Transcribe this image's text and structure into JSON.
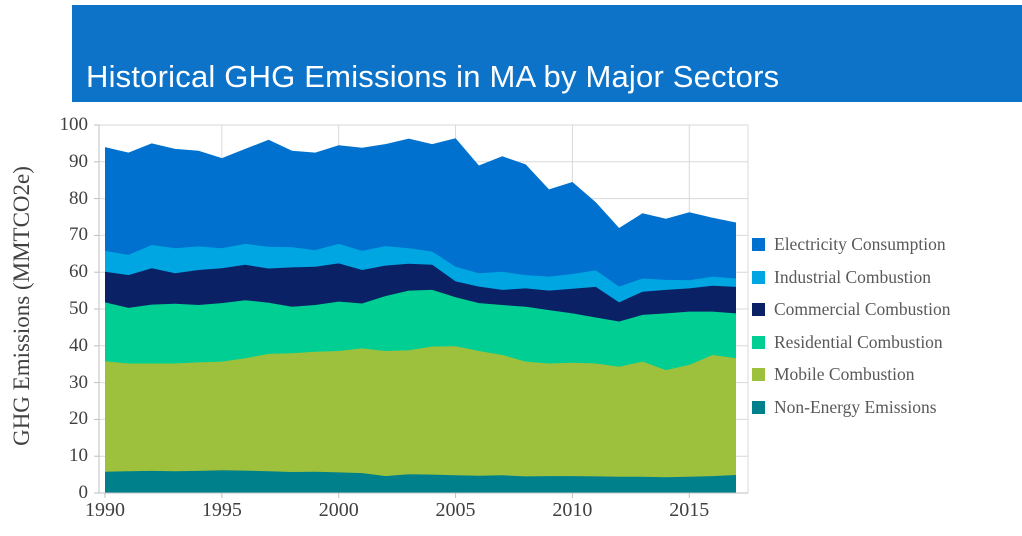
{
  "title": "Historical GHG Emissions in MA by Major Sectors",
  "y_axis_title": "GHG Emissions (MMTCO2e)",
  "colors": {
    "title_bar_background": "#0c73c8",
    "title_text": "#ffffff",
    "gridline": "#d9d9d9",
    "axis_line": "#bfbfbf",
    "tick_text": "#404040",
    "legend_text": "#595959"
  },
  "chart_data": {
    "type": "area",
    "stacked": true,
    "title": "Historical GHG Emissions in MA by Major Sectors",
    "xlabel": "",
    "ylabel": "GHG Emissions (MMTCO2e)",
    "ylim": [
      0,
      100
    ],
    "y_ticks": [
      0,
      10,
      20,
      30,
      40,
      50,
      60,
      70,
      80,
      90,
      100
    ],
    "x_ticks": [
      1990,
      1995,
      2000,
      2005,
      2010,
      2015
    ],
    "xlim": [
      1990,
      2017.5
    ],
    "grid": true,
    "legend_position": "right",
    "x": [
      1990,
      1991,
      1992,
      1993,
      1994,
      1995,
      1996,
      1997,
      1998,
      1999,
      2000,
      2001,
      2002,
      2003,
      2004,
      2005,
      2006,
      2007,
      2008,
      2009,
      2010,
      2011,
      2012,
      2013,
      2014,
      2015,
      2016,
      2017
    ],
    "series": [
      {
        "name": "Electricity Consumption",
        "color": "#0071ce",
        "values": [
          28.2,
          27.8,
          27.6,
          27.0,
          26.0,
          24.5,
          25.8,
          29.1,
          26.2,
          26.5,
          26.8,
          28.0,
          27.7,
          29.8,
          29.2,
          34.9,
          29.3,
          31.4,
          30.1,
          23.7,
          25.0,
          18.5,
          15.9,
          17.7,
          16.6,
          18.5,
          16.0,
          15.2
        ]
      },
      {
        "name": "Industrial Combustion",
        "color": "#00a6e2",
        "values": [
          5.7,
          5.5,
          6.3,
          6.8,
          6.4,
          5.4,
          5.7,
          5.9,
          5.5,
          4.5,
          5.3,
          5.2,
          5.3,
          4.2,
          3.6,
          4.0,
          3.6,
          4.9,
          3.6,
          3.8,
          4.0,
          4.5,
          4.3,
          3.6,
          2.7,
          2.2,
          2.5,
          2.3
        ]
      },
      {
        "name": "Commercial Combustion",
        "color": "#0a2265",
        "values": [
          8.3,
          8.9,
          9.9,
          8.3,
          9.5,
          9.5,
          9.6,
          9.3,
          10.7,
          10.4,
          10.4,
          9.1,
          8.3,
          7.3,
          6.8,
          4.3,
          4.5,
          4.1,
          5.0,
          5.3,
          6.7,
          8.3,
          5.2,
          6.3,
          6.4,
          6.3,
          7.0,
          7.2
        ]
      },
      {
        "name": "Residential Combustion",
        "color": "#00ce93",
        "values": [
          16.0,
          15.1,
          16.0,
          16.2,
          15.6,
          15.9,
          15.8,
          13.9,
          12.6,
          12.7,
          13.4,
          12.2,
          14.9,
          16.2,
          15.4,
          13.3,
          13.0,
          13.6,
          14.9,
          14.5,
          13.4,
          12.5,
          12.3,
          12.7,
          15.4,
          14.5,
          11.8,
          12.2
        ]
      },
      {
        "name": "Mobile Combustion",
        "color": "#9dc13c",
        "values": [
          30.0,
          29.3,
          29.2,
          29.3,
          29.5,
          29.5,
          30.5,
          31.9,
          32.3,
          32.6,
          33.0,
          33.9,
          34.0,
          33.7,
          34.8,
          35.1,
          33.9,
          32.7,
          31.2,
          30.6,
          30.8,
          30.7,
          29.9,
          31.3,
          29.1,
          30.4,
          32.9,
          31.7
        ]
      },
      {
        "name": "Non-Energy Emissions",
        "color": "#00808a",
        "values": [
          5.8,
          5.9,
          6.0,
          5.9,
          6.0,
          6.2,
          6.1,
          5.9,
          5.7,
          5.8,
          5.6,
          5.4,
          4.6,
          5.1,
          5.0,
          4.8,
          4.7,
          4.8,
          4.5,
          4.6,
          4.6,
          4.5,
          4.4,
          4.4,
          4.3,
          4.4,
          4.6,
          4.9
        ]
      }
    ]
  }
}
